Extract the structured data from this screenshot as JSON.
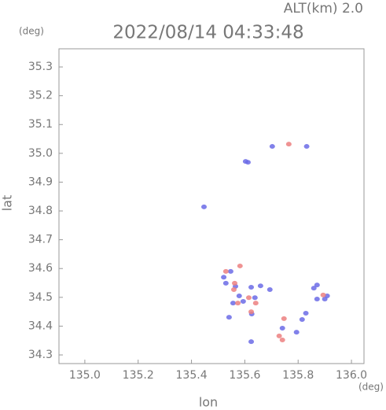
{
  "chart_data": {
    "type": "scatter",
    "header": "ALT(km) 2.0",
    "title": "2022/08/14 04:33:48",
    "y_unit": "(deg)",
    "x_unit": "(deg)",
    "y_label": "lat",
    "x_label": "lon",
    "xlim": [
      134.903,
      136.047
    ],
    "ylim": [
      34.27,
      35.363
    ],
    "xticks": [
      {
        "value": 135,
        "label": "135.0"
      },
      135.2,
      135.4,
      135.6,
      135.8,
      {
        "value": 136,
        "label": "136.0"
      }
    ],
    "yticks": [
      35.3,
      35.2,
      35.1,
      {
        "value": 35,
        "label": "35.0"
      },
      34.9,
      34.8,
      34.7,
      34.6,
      34.5,
      34.4,
      34.3
    ],
    "series": [
      {
        "color": "#6b6be6",
        "x": [
          135.703,
          135.832,
          135.612,
          135.603,
          135.447,
          135.521,
          135.529,
          135.565,
          135.579,
          135.624,
          135.638,
          135.694,
          135.659,
          135.556,
          135.594,
          135.626,
          135.541,
          135.624,
          135.741,
          135.794,
          135.815,
          135.829,
          135.871,
          135.9,
          135.909,
          135.859,
          135.871,
          135.547
        ],
        "y": [
          35.024,
          35.024,
          34.969,
          34.972,
          34.814,
          34.57,
          34.549,
          34.538,
          34.505,
          34.535,
          34.499,
          34.527,
          34.54,
          34.48,
          34.486,
          34.442,
          34.431,
          34.346,
          34.393,
          34.379,
          34.423,
          34.445,
          34.494,
          34.494,
          34.505,
          34.532,
          34.543,
          34.59
        ]
      },
      {
        "color": "#ec8080",
        "x": [
          135.765,
          135.529,
          135.559,
          135.574,
          135.615,
          135.624,
          135.641,
          135.747,
          135.729,
          135.741,
          135.894,
          135.562,
          135.582
        ],
        "y": [
          35.032,
          34.59,
          34.527,
          34.48,
          34.499,
          34.45,
          34.48,
          34.426,
          34.366,
          34.352,
          34.508,
          34.549,
          34.609
        ]
      }
    ]
  }
}
